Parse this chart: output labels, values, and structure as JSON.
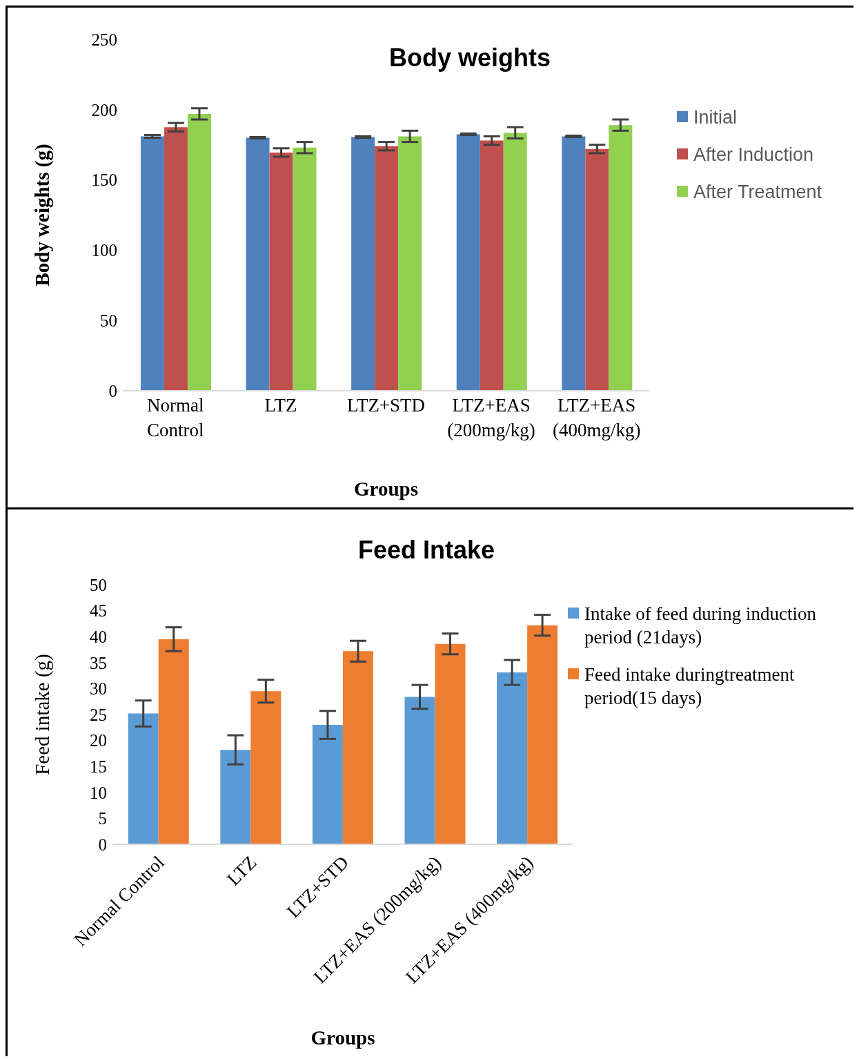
{
  "chart_data": [
    {
      "type": "bar",
      "title": "Body weights",
      "xlabel": "Groups",
      "ylabel": "Body weights (g)",
      "categories": [
        "Normal Control",
        "LTZ",
        "LTZ+STD",
        "LTZ+EAS (200mg/kg)",
        "LTZ+EAS (400mg/kg)"
      ],
      "series": [
        {
          "name": "Initial",
          "color": "#4f81bd",
          "values": [
            181,
            180,
            180.5,
            182.5,
            181
          ],
          "errors": [
            1,
            0.5,
            0.5,
            0.5,
            0.5
          ]
        },
        {
          "name": "After Induction",
          "color": "#c0504d",
          "values": [
            187.5,
            169.5,
            174,
            178,
            172
          ],
          "errors": [
            3,
            3,
            3,
            3,
            3
          ]
        },
        {
          "name": "After Treatment",
          "color": "#92d050",
          "values": [
            197,
            173,
            181,
            183.5,
            189
          ],
          "errors": [
            4,
            4,
            4,
            4,
            4
          ]
        }
      ],
      "ylim": [
        0,
        250
      ],
      "yticks": [
        0,
        50,
        100,
        150,
        200,
        250
      ],
      "grid": false,
      "legend": "top right"
    },
    {
      "type": "bar",
      "title": "Feed Intake",
      "xlabel": "Groups",
      "ylabel": "Feed intake (g)",
      "categories": [
        "Normal Control",
        "LTZ",
        "LTZ+STD",
        "LTZ+EAS (200mg/kg)",
        "LTZ+EAS (400mg/kg)"
      ],
      "series": [
        {
          "name": "Intake of feed during  induction period (21days)",
          "color": "#5b9bd5",
          "values": [
            25.2,
            18.2,
            23,
            28.4,
            33.1
          ],
          "errors": [
            2.5,
            2.8,
            2.7,
            2.3,
            2.4
          ]
        },
        {
          "name": "Feed intake duringtreatment period(15 days)",
          "color": "#ed7d31",
          "values": [
            39.5,
            29.5,
            37.2,
            38.6,
            42.2
          ],
          "errors": [
            2.3,
            2.2,
            2,
            2,
            2
          ]
        }
      ],
      "ylim": [
        0,
        50
      ],
      "yticks": [
        0,
        5,
        10,
        15,
        20,
        25,
        30,
        35,
        40,
        45,
        50
      ],
      "grid": false,
      "legend": "top right"
    }
  ]
}
